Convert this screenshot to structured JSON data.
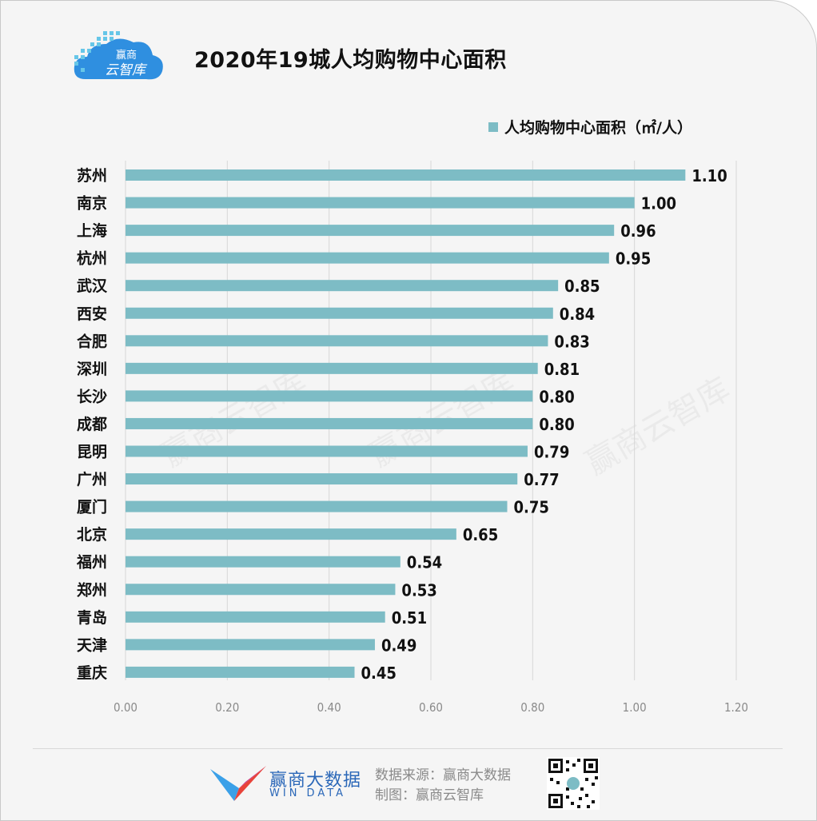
{
  "header": {
    "logo_text_top": "赢商",
    "logo_text_bottom": "云智库",
    "title": "2020年19城人均购物中心面积"
  },
  "legend": {
    "label": "人均购物中心面积（㎡/人）"
  },
  "colors": {
    "bar": "#7dbcc5",
    "brand": "#2a67b8"
  },
  "chart_data": {
    "type": "bar",
    "orientation": "horizontal",
    "title": "2020年19城人均购物中心面积",
    "categories": [
      "苏州",
      "南京",
      "上海",
      "杭州",
      "武汉",
      "西安",
      "合肥",
      "深圳",
      "长沙",
      "成都",
      "昆明",
      "广州",
      "厦门",
      "北京",
      "福州",
      "郑州",
      "青岛",
      "天津",
      "重庆"
    ],
    "series": [
      {
        "name": "人均购物中心面积（㎡/人）",
        "values": [
          1.1,
          1.0,
          0.96,
          0.95,
          0.85,
          0.84,
          0.83,
          0.81,
          0.8,
          0.8,
          0.79,
          0.77,
          0.75,
          0.65,
          0.54,
          0.53,
          0.51,
          0.49,
          0.45
        ],
        "labels": [
          "1.10",
          "1.00",
          "0.96",
          "0.95",
          "0.85",
          "0.84",
          "0.83",
          "0.81",
          "0.80",
          "0.80",
          "0.79",
          "0.77",
          "0.75",
          "0.65",
          "0.54",
          "0.53",
          "0.51",
          "0.49",
          "0.45"
        ]
      }
    ],
    "xlim": [
      0,
      1.2
    ],
    "xticks": [
      "0.00",
      "0.20",
      "0.40",
      "0.60",
      "0.80",
      "1.00",
      "1.20"
    ],
    "grid": "vertical",
    "legend_position": "top-right"
  },
  "watermark": {
    "text": "赢商云智库"
  },
  "footer": {
    "brand_name": "赢商大数据",
    "brand_sub": "WIN DATA",
    "source_line": "数据来源：赢商大数据",
    "credit_line": "制图：赢商云智库"
  }
}
